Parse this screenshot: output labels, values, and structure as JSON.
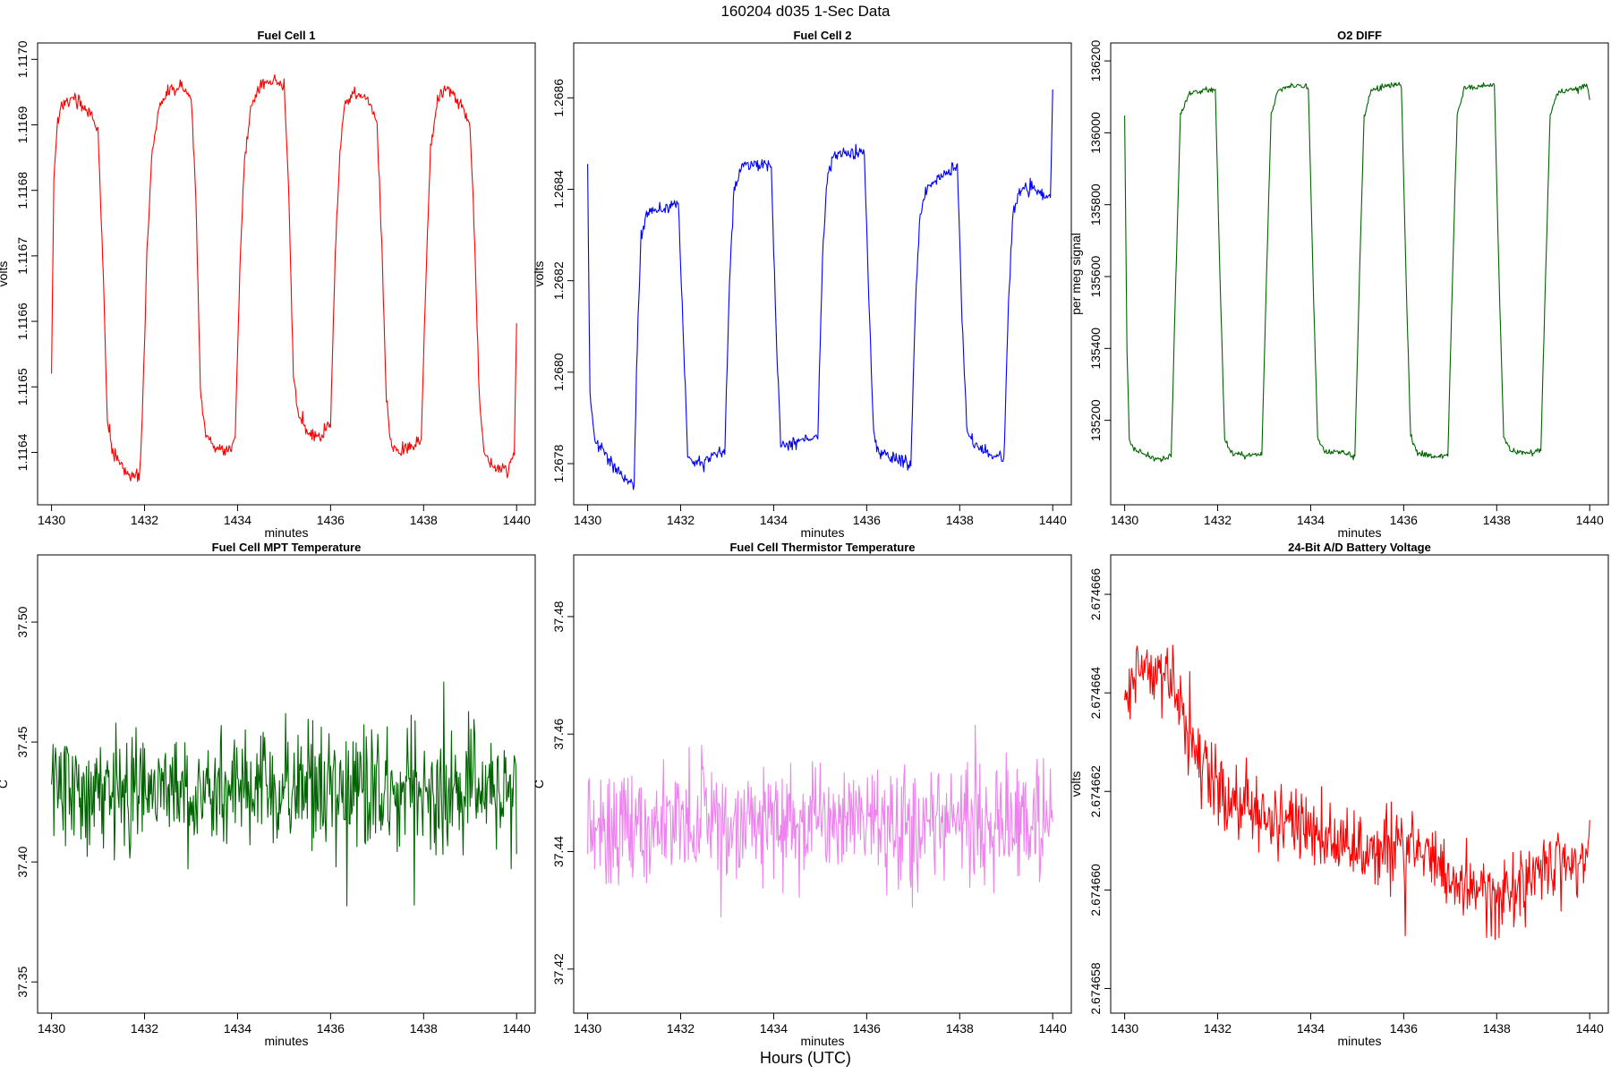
{
  "figure": {
    "title": "160204   d035   1-Sec Data",
    "xaxis_caption": "Hours (UTC)"
  },
  "chart_data": [
    {
      "type": "line",
      "title": "Fuel Cell 1",
      "xlabel": "minutes",
      "ylabel": "volts",
      "color": "#ff0000",
      "xlim": [
        1429.7,
        1440.4
      ],
      "ylim": [
        1.11632,
        1.117025
      ],
      "xticks": [
        "1430",
        "1432",
        "1434",
        "1436",
        "1438",
        "1440"
      ],
      "yticks": [
        "1.1164",
        "1.1165",
        "1.1166",
        "1.1167",
        "1.1168",
        "1.1169",
        "1.1170"
      ],
      "series": [
        {
          "x": [
            1430.0,
            1430.05,
            1430.12,
            1430.2,
            1430.5,
            1430.8,
            1431.0,
            1431.1,
            1431.2,
            1431.3,
            1431.5,
            1431.7,
            1431.9,
            1431.95,
            1432.05,
            1432.15,
            1432.3,
            1432.5,
            1432.8,
            1433.0,
            1433.1,
            1433.2,
            1433.3,
            1433.5,
            1433.8,
            1433.95,
            1434.05,
            1434.15,
            1434.3,
            1434.5,
            1434.8,
            1435.0,
            1435.1,
            1435.2,
            1435.3,
            1435.5,
            1435.8,
            1436.0,
            1436.1,
            1436.2,
            1436.3,
            1436.5,
            1436.8,
            1437.0,
            1437.1,
            1437.2,
            1437.3,
            1437.5,
            1437.8,
            1437.95,
            1438.05,
            1438.15,
            1438.3,
            1438.5,
            1438.8,
            1439.0,
            1439.1,
            1439.2,
            1439.3,
            1439.5,
            1439.8,
            1439.95,
            1440.0
          ],
          "y": [
            1.11652,
            1.11682,
            1.1169,
            1.11693,
            1.11694,
            1.11692,
            1.11689,
            1.1167,
            1.11645,
            1.1164,
            1.11638,
            1.11636,
            1.11637,
            1.11645,
            1.1167,
            1.11685,
            1.11692,
            1.11695,
            1.11696,
            1.11694,
            1.1168,
            1.1165,
            1.11643,
            1.11641,
            1.1164,
            1.11642,
            1.11668,
            1.11685,
            1.11693,
            1.11696,
            1.11697,
            1.11696,
            1.1168,
            1.11652,
            1.11646,
            1.11643,
            1.11642,
            1.11645,
            1.1167,
            1.11686,
            1.11693,
            1.11695,
            1.11694,
            1.1169,
            1.11672,
            1.11648,
            1.11641,
            1.1164,
            1.11641,
            1.11642,
            1.11667,
            1.11686,
            1.11694,
            1.11696,
            1.11693,
            1.1169,
            1.11672,
            1.11648,
            1.1164,
            1.11638,
            1.11637,
            1.1164,
            1.1166
          ],
          "noise": 8e-06
        }
      ]
    },
    {
      "type": "line",
      "title": "Fuel Cell 2",
      "xlabel": "minutes",
      "ylabel": "volts",
      "color": "#0000ff",
      "xlim": [
        1429.7,
        1440.4
      ],
      "ylim": [
        1.26771,
        1.26872
      ],
      "xticks": [
        "1430",
        "1432",
        "1434",
        "1436",
        "1438",
        "1440"
      ],
      "yticks": [
        "1.2678",
        "1.2680",
        "1.2682",
        "1.2684",
        "1.2686"
      ],
      "series": [
        {
          "x": [
            1430.0,
            1430.05,
            1430.15,
            1430.4,
            1430.7,
            1431.0,
            1431.05,
            1431.15,
            1431.3,
            1431.6,
            1431.95,
            1432.05,
            1432.15,
            1432.3,
            1432.6,
            1432.95,
            1433.05,
            1433.15,
            1433.3,
            1433.6,
            1433.95,
            1434.05,
            1434.15,
            1434.3,
            1434.6,
            1434.95,
            1435.05,
            1435.15,
            1435.3,
            1435.6,
            1435.95,
            1436.05,
            1436.15,
            1436.3,
            1436.6,
            1436.95,
            1437.05,
            1437.15,
            1437.3,
            1437.6,
            1437.95,
            1438.05,
            1438.15,
            1438.3,
            1438.6,
            1438.95,
            1439.05,
            1439.15,
            1439.3,
            1439.6,
            1439.95,
            1440.0
          ],
          "y": [
            1.26845,
            1.26795,
            1.26785,
            1.26782,
            1.26778,
            1.26775,
            1.268,
            1.2683,
            1.26835,
            1.26836,
            1.26837,
            1.2681,
            1.26782,
            1.2678,
            1.26781,
            1.26783,
            1.2682,
            1.2684,
            1.26845,
            1.26846,
            1.26845,
            1.2681,
            1.26785,
            1.26784,
            1.26785,
            1.26786,
            1.26825,
            1.26843,
            1.26848,
            1.26848,
            1.26848,
            1.26815,
            1.26786,
            1.26782,
            1.26781,
            1.2678,
            1.26815,
            1.26835,
            1.2684,
            1.26843,
            1.26845,
            1.26812,
            1.26788,
            1.26784,
            1.26782,
            1.26781,
            1.26815,
            1.26835,
            1.2684,
            1.2684,
            1.26838,
            1.26862
          ],
          "noise": 1.2e-05
        }
      ]
    },
    {
      "type": "line",
      "title": "O2 DIFF",
      "xlabel": "minutes",
      "ylabel": "per meg signal",
      "color": "#006400",
      "xlim": [
        1429.7,
        1440.4
      ],
      "ylim": [
        134965,
        136250
      ],
      "xticks": [
        "1430",
        "1432",
        "1434",
        "1436",
        "1438",
        "1440"
      ],
      "yticks": [
        "135200",
        "135400",
        "135600",
        "135800",
        "136000",
        "136200"
      ],
      "series": [
        {
          "x": [
            1430.0,
            1430.05,
            1430.1,
            1430.2,
            1430.5,
            1430.8,
            1431.0,
            1431.1,
            1431.2,
            1431.4,
            1431.7,
            1431.95,
            1432.05,
            1432.15,
            1432.3,
            1432.6,
            1432.95,
            1433.05,
            1433.15,
            1433.3,
            1433.6,
            1433.95,
            1434.05,
            1434.15,
            1434.3,
            1434.6,
            1434.95,
            1435.05,
            1435.15,
            1435.3,
            1435.6,
            1435.95,
            1436.05,
            1436.15,
            1436.3,
            1436.6,
            1436.95,
            1437.05,
            1437.15,
            1437.3,
            1437.6,
            1437.95,
            1438.05,
            1438.15,
            1438.3,
            1438.6,
            1438.95,
            1439.05,
            1439.15,
            1439.3,
            1439.6,
            1439.95,
            1440.0
          ],
          "y": [
            136050,
            135400,
            135150,
            135120,
            135100,
            135090,
            135100,
            135600,
            136050,
            136110,
            136120,
            136120,
            135600,
            135150,
            135110,
            135100,
            135105,
            135600,
            136050,
            136120,
            136130,
            136130,
            135600,
            135150,
            135115,
            135110,
            135105,
            135600,
            136050,
            136120,
            136130,
            136135,
            135600,
            135150,
            135110,
            135100,
            135100,
            135600,
            136050,
            136120,
            136130,
            136135,
            135600,
            135150,
            135115,
            135110,
            135115,
            135600,
            136050,
            136110,
            136120,
            136130,
            136090
          ],
          "noise": 7
        }
      ]
    },
    {
      "type": "line",
      "title": "Fuel Cell MPT Temperature",
      "xlabel": "minutes",
      "ylabel": "C",
      "color": "#006400",
      "xlim": [
        1429.7,
        1440.4
      ],
      "ylim": [
        37.337,
        37.528
      ],
      "xticks": [
        "1430",
        "1432",
        "1434",
        "1436",
        "1438",
        "1440"
      ],
      "yticks": [
        "37.35",
        "37.40",
        "37.45",
        "37.50"
      ],
      "series": [
        {
          "x": [
            1430.0,
            1440.0
          ],
          "y": [
            37.43,
            37.43
          ],
          "noise": 0.022
        }
      ]
    },
    {
      "type": "line",
      "title": "Fuel Cell Thermistor Temperature",
      "xlabel": "minutes",
      "ylabel": "C",
      "color": "#ee82ee",
      "xlim": [
        1429.7,
        1440.4
      ],
      "ylim": [
        37.4125,
        37.4905
      ],
      "xticks": [
        "1430",
        "1432",
        "1434",
        "1436",
        "1438",
        "1440"
      ],
      "yticks": [
        "37.42",
        "37.44",
        "37.46",
        "37.48"
      ],
      "series": [
        {
          "x": [
            1430.0,
            1440.0
          ],
          "y": [
            37.445,
            37.445
          ],
          "noise": 0.0085
        }
      ]
    },
    {
      "type": "line",
      "title": "24-Bit A/D Battery Voltage",
      "xlabel": "minutes",
      "ylabel": "volts",
      "color": "#ff0000",
      "xlim": [
        1429.7,
        1440.4
      ],
      "ylim": [
        2.6746575,
        2.6746668
      ],
      "xticks": [
        "1430",
        "1432",
        "1434",
        "1436",
        "1438",
        "1440"
      ],
      "yticks": [
        "2.674658",
        "2.674660",
        "2.674662",
        "2.674664",
        "2.674666"
      ],
      "series": [
        {
          "x": [
            1430.0,
            1430.5,
            1431.0,
            1431.5,
            1432.0,
            1433.0,
            1434.0,
            1435.0,
            1436.0,
            1437.0,
            1437.5,
            1438.0,
            1439.0,
            1440.0
          ],
          "y": [
            2.674664,
            2.6746645,
            2.6746642,
            2.6746628,
            2.674662,
            2.6746615,
            2.6746612,
            2.6746608,
            2.674661,
            2.6746605,
            2.67466,
            2.6746598,
            2.6746604,
            2.6746608
          ],
          "noise": 6.5e-07
        }
      ]
    }
  ]
}
